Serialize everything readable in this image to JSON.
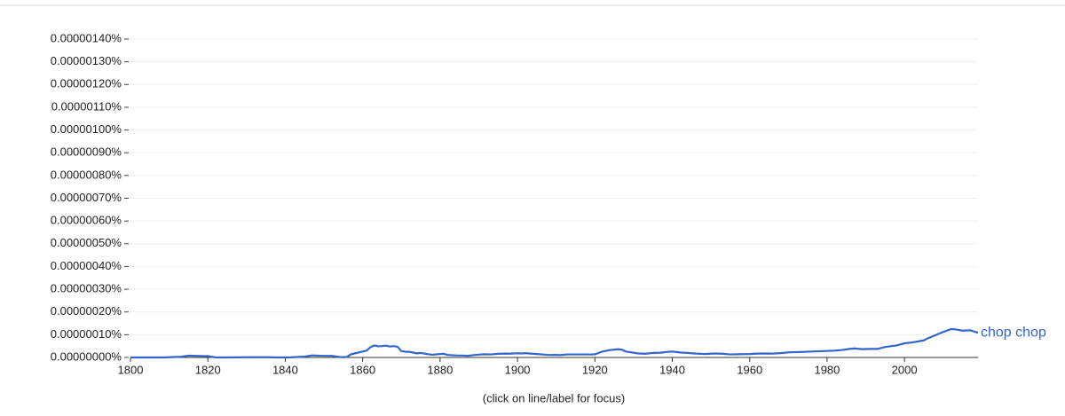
{
  "chart_data": {
    "type": "line",
    "note": "(click on line/label for focus)",
    "xlim": [
      1800,
      2019
    ],
    "xticks": [
      1800,
      1820,
      1840,
      1860,
      1880,
      1900,
      1920,
      1940,
      1960,
      1980,
      2000
    ],
    "ylim": [
      0,
      1.4e-06
    ],
    "yticks": [
      {
        "value": 0,
        "label": "0.00000000%"
      },
      {
        "value": 1e-07,
        "label": "0.00000010%"
      },
      {
        "value": 2e-07,
        "label": "0.00000020%"
      },
      {
        "value": 3e-07,
        "label": "0.00000030%"
      },
      {
        "value": 4e-07,
        "label": "0.00000040%"
      },
      {
        "value": 5e-07,
        "label": "0.00000050%"
      },
      {
        "value": 6e-07,
        "label": "0.00000060%"
      },
      {
        "value": 7e-07,
        "label": "0.00000070%"
      },
      {
        "value": 8e-07,
        "label": "0.00000080%"
      },
      {
        "value": 9e-07,
        "label": "0.00000090%"
      },
      {
        "value": 1e-06,
        "label": "0.00000100%"
      },
      {
        "value": 1.1e-06,
        "label": "0.00000110%"
      },
      {
        "value": 1.2e-06,
        "label": "0.00000120%"
      },
      {
        "value": 1.3e-06,
        "label": "0.00000130%"
      },
      {
        "value": 1.4e-06,
        "label": "0.00000140%"
      }
    ],
    "grid": true,
    "x": [
      1800,
      1805,
      1809,
      1811,
      1813,
      1815,
      1817,
      1819,
      1820,
      1822,
      1825,
      1828,
      1830,
      1835,
      1838,
      1841,
      1843,
      1845,
      1847,
      1849,
      1852,
      1854,
      1855,
      1856,
      1857,
      1858,
      1860,
      1861,
      1862,
      1863,
      1864,
      1865,
      1866,
      1867,
      1868,
      1869,
      1870,
      1871,
      1872,
      1874,
      1875,
      1877,
      1878,
      1880,
      1881,
      1882,
      1884,
      1886,
      1887,
      1889,
      1891,
      1893,
      1895,
      1897,
      1898,
      1900,
      1901,
      1902,
      1903,
      1905,
      1908,
      1910,
      1911,
      1913,
      1915,
      1918,
      1919,
      1920,
      1922,
      1924,
      1926,
      1927,
      1928,
      1930,
      1931,
      1933,
      1935,
      1937,
      1939,
      1940,
      1942,
      1944,
      1946,
      1948,
      1949,
      1951,
      1953,
      1955,
      1957,
      1960,
      1962,
      1964,
      1966,
      1968,
      1970,
      1973,
      1976,
      1980,
      1982,
      1984,
      1986,
      1987,
      1989,
      1991,
      1993,
      1995,
      1998,
      2000,
      2002,
      2005,
      2006,
      2008,
      2010,
      2012,
      2013,
      2015,
      2017,
      2019
    ],
    "series": [
      {
        "name": "chop chop",
        "color": "#3366cc",
        "values": [
          0,
          0,
          0,
          2e-09,
          3e-09,
          8e-09,
          7e-09,
          6e-09,
          6e-09,
          0,
          0,
          5e-10,
          1e-09,
          1e-09,
          0,
          0,
          2e-09,
          4e-09,
          9e-09,
          7.5e-09,
          7e-09,
          2e-09,
          1e-09,
          3e-09,
          1.4e-08,
          1.8e-08,
          2.6e-08,
          3e-08,
          4.5e-08,
          5.3e-08,
          4.9e-08,
          5e-08,
          5.2e-08,
          4.8e-08,
          5e-08,
          4.7e-08,
          2.8e-08,
          2.5e-08,
          2.5e-08,
          1.8e-08,
          2e-08,
          1.4e-08,
          1.2e-08,
          1.5e-08,
          1.6e-08,
          1.1e-08,
          9e-09,
          8.5e-09,
          7e-09,
          1.1e-08,
          1.4e-08,
          1.35e-08,
          1.6e-08,
          1.7e-08,
          1.65e-08,
          1.85e-08,
          1.75e-08,
          1.9e-08,
          1.75e-08,
          1.5e-08,
          1.1e-08,
          1.15e-08,
          1.05e-08,
          1.35e-08,
          1.35e-08,
          1.35e-08,
          1.3e-08,
          1.4e-08,
          2.6e-08,
          3.3e-08,
          3.6e-08,
          3.4e-08,
          2.6e-08,
          2.1e-08,
          1.8e-08,
          1.6e-08,
          2e-08,
          2.1e-08,
          2.5e-08,
          2.6e-08,
          2.2e-08,
          2e-08,
          1.7e-08,
          1.55e-08,
          1.55e-08,
          1.75e-08,
          1.6e-08,
          1.35e-08,
          1.4e-08,
          1.5e-08,
          1.7e-08,
          1.75e-08,
          1.7e-08,
          1.9e-08,
          2.25e-08,
          2.4e-08,
          2.6e-08,
          2.85e-08,
          3e-08,
          3.3e-08,
          3.8e-08,
          3.95e-08,
          3.65e-08,
          3.75e-08,
          3.75e-08,
          4.6e-08,
          5.3e-08,
          6.2e-08,
          6.6e-08,
          7.5e-08,
          8.4e-08,
          9.8e-08,
          1.12e-07,
          1.245e-07,
          1.24e-07,
          1.18e-07,
          1.195e-07,
          1.085e-07
        ]
      }
    ]
  }
}
